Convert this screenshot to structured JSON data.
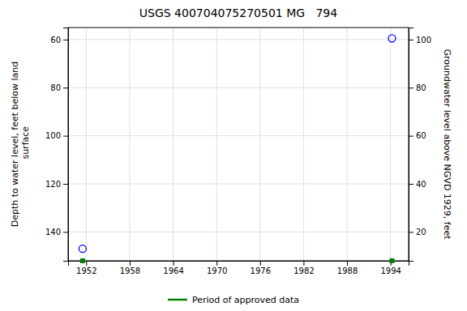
{
  "chart_data": {
    "type": "scatter",
    "title": "USGS 400704075270501 MG   794",
    "y_label": "Depth to water level, feet below land\n surface",
    "y2_label": "Groundwater level above NGVD 1929, feet",
    "xlim": [
      1949.5,
      1996.5
    ],
    "xticks": [
      1952,
      1958,
      1964,
      1970,
      1976,
      1982,
      1988,
      1994
    ],
    "ylim": [
      152,
      55
    ],
    "yticks": [
      60,
      80,
      100,
      120,
      140
    ],
    "y2lim": [
      8,
      105
    ],
    "y2ticks": [
      100,
      80,
      60,
      40,
      20
    ],
    "grid": true,
    "legend": "bottom",
    "series": [
      {
        "color": "#0000ff",
        "marker": "circle",
        "x": [
          1951.5,
          1994.2
        ],
        "values": [
          147.0,
          59.5
        ]
      },
      {
        "name": "Period of approved data",
        "color": "#008000",
        "marker": "square",
        "x": [
          1951.5,
          1994.2
        ],
        "values": [
          152,
          152
        ]
      }
    ]
  }
}
